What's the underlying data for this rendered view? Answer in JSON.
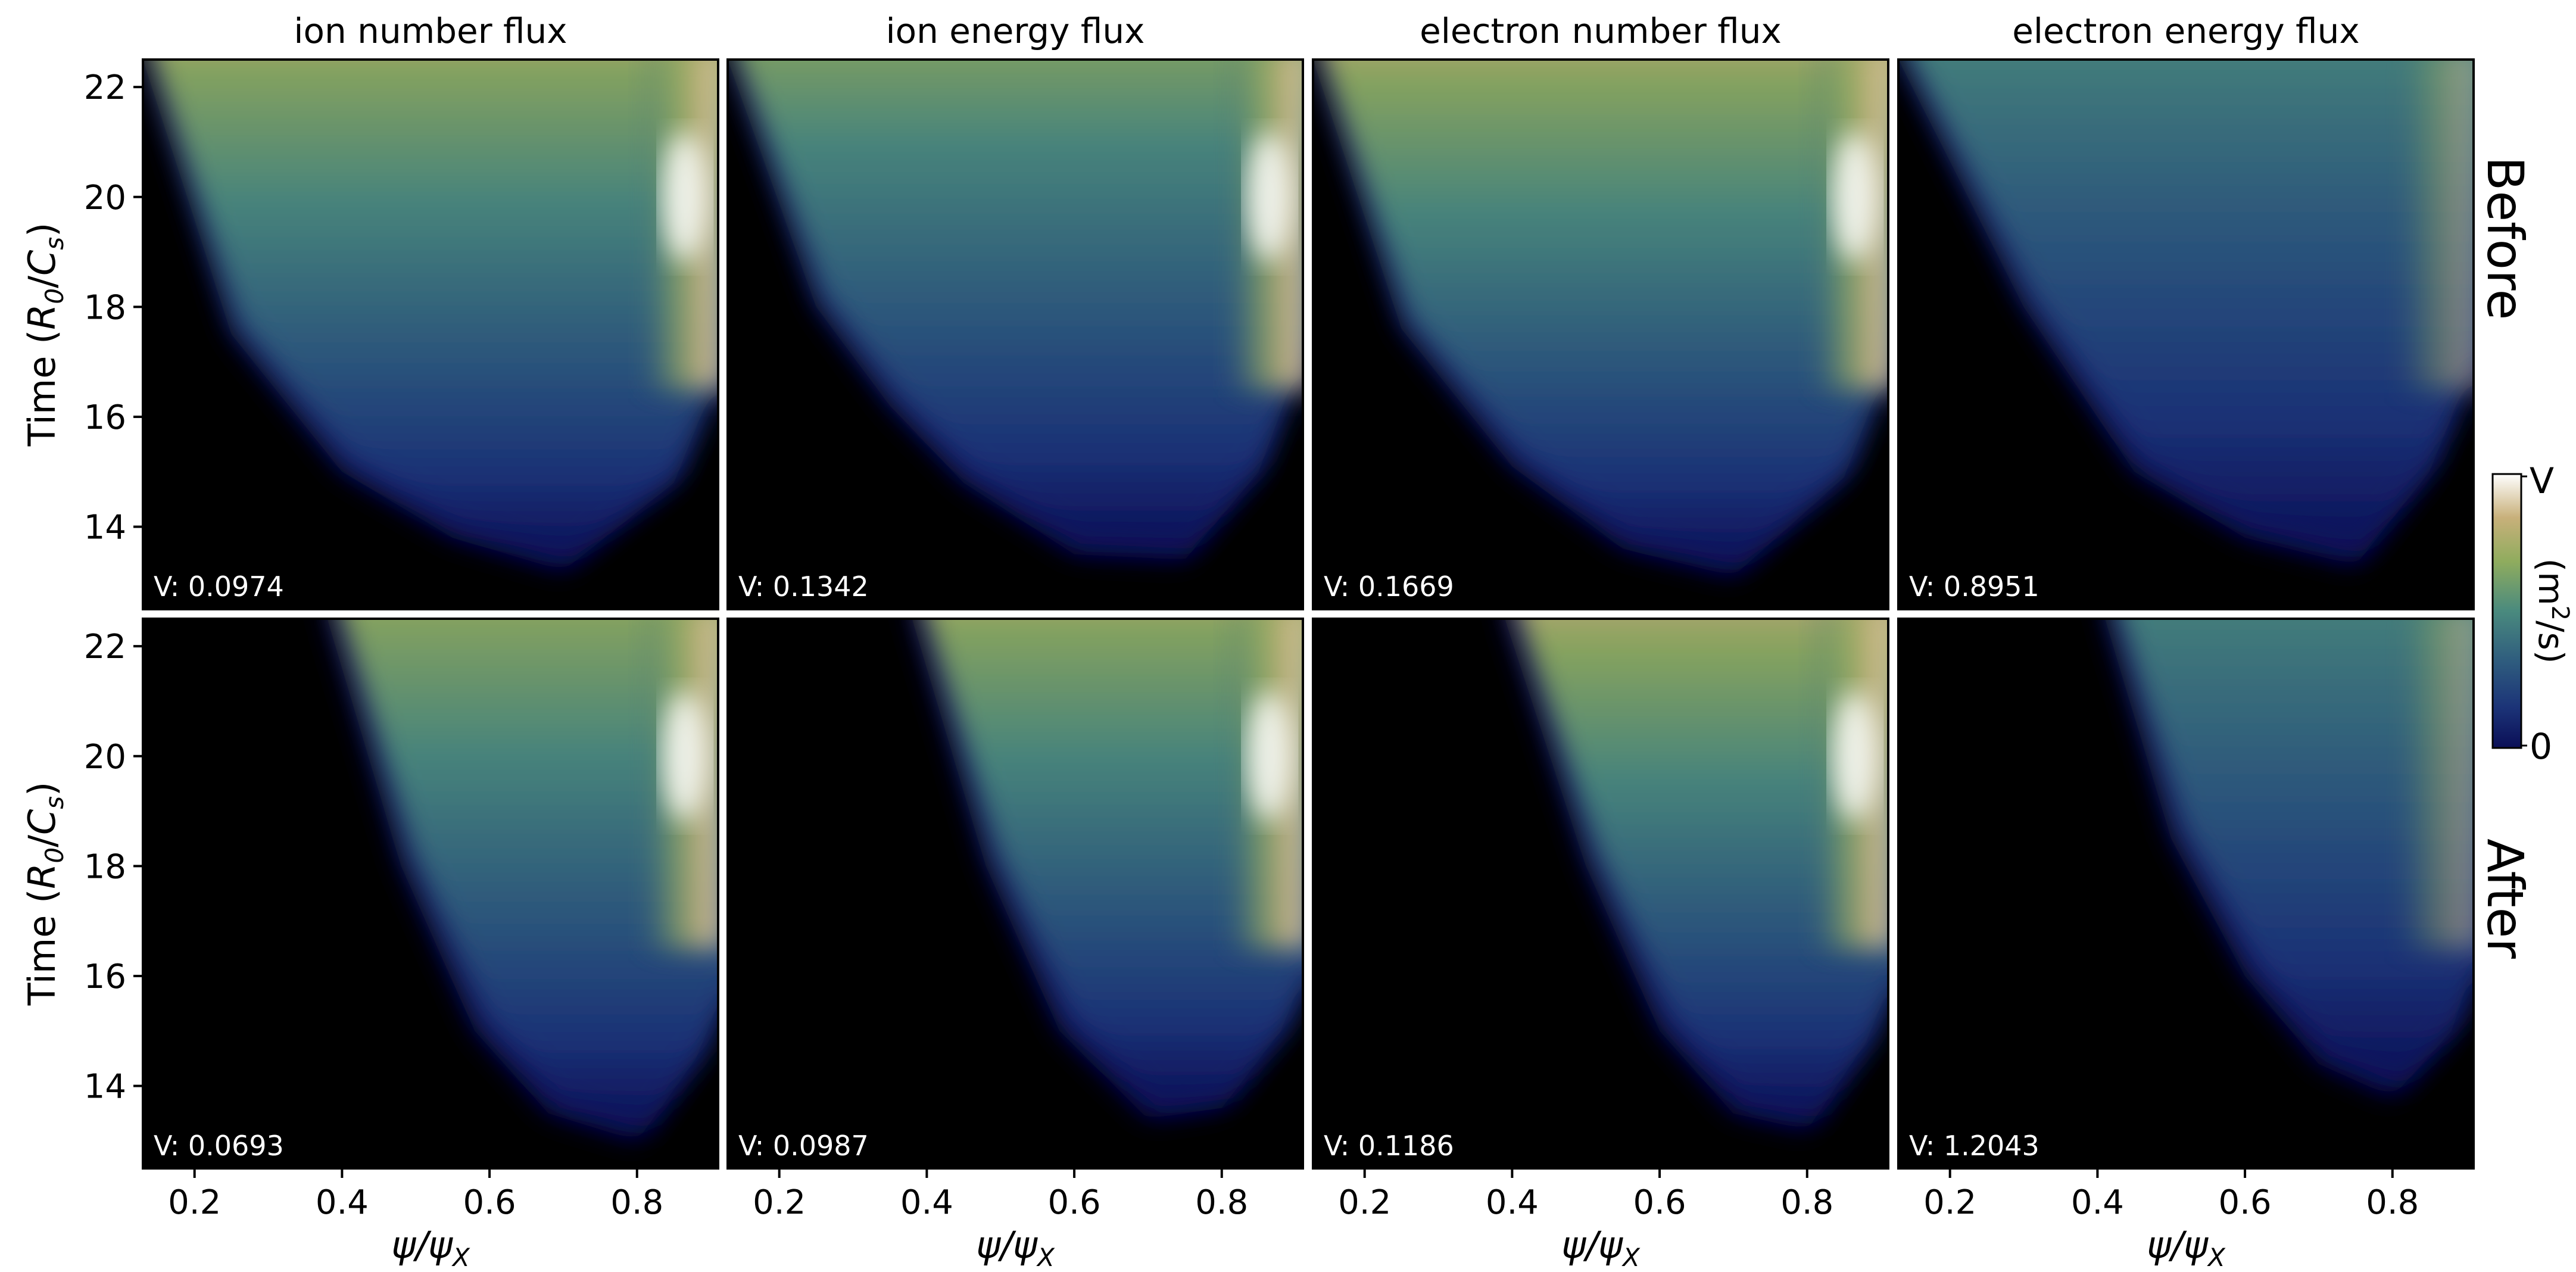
{
  "chart_data": {
    "type": "heatmap",
    "panel_titles": [
      "ion number flux",
      "ion energy flux",
      "electron number flux",
      "electron energy flux"
    ],
    "row_labels": [
      "Before",
      "After"
    ],
    "xlabel": "ψ/ψ",
    "xlabel_sub": "X",
    "ylabel_prefix": "Time (",
    "ylabel_num": "R",
    "ylabel_num_sub": "0",
    "ylabel_slash": "/",
    "ylabel_den": "C",
    "ylabel_den_sub": "s",
    "ylabel_suffix": ")",
    "xlim": [
      0.13,
      0.91
    ],
    "ylim": [
      12.5,
      22.5
    ],
    "x_ticks": [
      0.2,
      0.4,
      0.6,
      0.8
    ],
    "x_tick_labels": [
      "0.2",
      "0.4",
      "0.6",
      "0.8"
    ],
    "y_ticks": [
      14,
      16,
      18,
      20,
      22
    ],
    "y_tick_labels": [
      "14",
      "16",
      "18",
      "20",
      "22"
    ],
    "colorbar": {
      "colormap": "gist_earth",
      "min_label": "0",
      "max_label": "V",
      "units_label": "(m",
      "units_sup": "2",
      "units_tail": "/s)"
    },
    "panels": [
      {
        "row": 0,
        "col": 0,
        "v_label": "V: 0.0974",
        "v": 0.0974,
        "onset_x": [
          0.13,
          0.25,
          0.4,
          0.55,
          0.7,
          0.85,
          0.91
        ],
        "onset_t": [
          22.5,
          17.5,
          15.0,
          13.8,
          13.2,
          14.8,
          16.8
        ],
        "level": 0.4
      },
      {
        "row": 0,
        "col": 1,
        "v_label": "V: 0.1342",
        "v": 0.1342,
        "onset_x": [
          0.13,
          0.25,
          0.35,
          0.45,
          0.6,
          0.75,
          0.85,
          0.91
        ],
        "onset_t": [
          22.5,
          18.0,
          16.2,
          14.8,
          13.5,
          13.4,
          15.0,
          17.2
        ],
        "level": 0.3
      },
      {
        "row": 0,
        "col": 2,
        "v_label": "V: 0.1669",
        "v": 0.1669,
        "onset_x": [
          0.13,
          0.25,
          0.4,
          0.55,
          0.7,
          0.85,
          0.91
        ],
        "onset_t": [
          22.5,
          17.6,
          15.1,
          13.6,
          13.1,
          14.9,
          17.0
        ],
        "level": 0.42
      },
      {
        "row": 0,
        "col": 3,
        "v_label": "V: 0.8951",
        "v": 0.8951,
        "onset_x": [
          0.13,
          0.3,
          0.45,
          0.6,
          0.75,
          0.85,
          0.91
        ],
        "onset_t": [
          22.5,
          18.0,
          15.0,
          13.8,
          13.3,
          15.0,
          17.0
        ],
        "level": 0.12
      },
      {
        "row": 1,
        "col": 0,
        "v_label": "V: 0.0693",
        "v": 0.0693,
        "onset_x": [
          0.38,
          0.48,
          0.58,
          0.68,
          0.8,
          0.88,
          0.91
        ],
        "onset_t": [
          22.5,
          18.0,
          15.0,
          13.5,
          13.0,
          14.5,
          15.5
        ],
        "level": 0.38
      },
      {
        "row": 1,
        "col": 1,
        "v_label": "V: 0.0987",
        "v": 0.0987,
        "onset_x": [
          0.38,
          0.48,
          0.58,
          0.7,
          0.8,
          0.88,
          0.91
        ],
        "onset_t": [
          22.5,
          18.0,
          15.0,
          13.4,
          13.6,
          15.0,
          16.0
        ],
        "level": 0.4
      },
      {
        "row": 1,
        "col": 2,
        "v_label": "V: 0.1186",
        "v": 0.1186,
        "onset_x": [
          0.39,
          0.5,
          0.6,
          0.7,
          0.8,
          0.88,
          0.91
        ],
        "onset_t": [
          22.5,
          18.0,
          15.0,
          13.5,
          13.2,
          14.8,
          15.8
        ],
        "level": 0.44
      },
      {
        "row": 1,
        "col": 3,
        "v_label": "V: 1.2043",
        "v": 1.2043,
        "onset_x": [
          0.41,
          0.5,
          0.6,
          0.7,
          0.8,
          0.88,
          0.91
        ],
        "onset_t": [
          22.5,
          18.5,
          16.0,
          14.4,
          13.8,
          15.0,
          16.2
        ],
        "level": 0.14
      }
    ]
  }
}
